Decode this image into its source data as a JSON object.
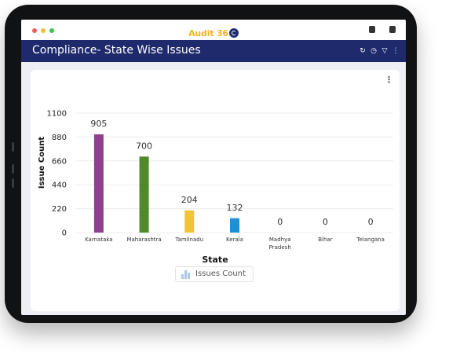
{
  "app": {
    "logo_text": "Audit 36",
    "window_controls": [
      "#f25f57",
      "#f8bb3d",
      "#36c84b"
    ]
  },
  "header": {
    "title": "Compliance- State Wise Issues",
    "background": "#1e2a6c",
    "icons": [
      "refresh-icon",
      "clock-icon",
      "filter-icon",
      "more-vertical-icon"
    ]
  },
  "card": {
    "menu_icon": "more-vertical-icon"
  },
  "chart_data": {
    "type": "bar",
    "categories": [
      "Karnataka",
      "Maharashtra",
      "Tamilnadu",
      "Kerala",
      "Madhya Pradesh",
      "Bihar",
      "Telangana"
    ],
    "category_lines": [
      [
        "Karnataka"
      ],
      [
        "Maharashtra"
      ],
      [
        "Tamilnadu"
      ],
      [
        "Kerala"
      ],
      [
        "Madhya",
        "Pradesh"
      ],
      [
        "Bihar"
      ],
      [
        "Telangana"
      ]
    ],
    "values": [
      905,
      700,
      204,
      132,
      0,
      0,
      0
    ],
    "colors": [
      "#8e3f8e",
      "#4e8a2a",
      "#f2c438",
      "#1e90d6",
      "#1e90d6",
      "#1e90d6",
      "#1e90d6"
    ],
    "yticks": [
      0,
      220,
      440,
      660,
      880,
      1100
    ],
    "ylim": [
      0,
      1100
    ],
    "xlabel": "State",
    "ylabel": "Issue Count",
    "legend": "Issues Count",
    "grid": true
  }
}
